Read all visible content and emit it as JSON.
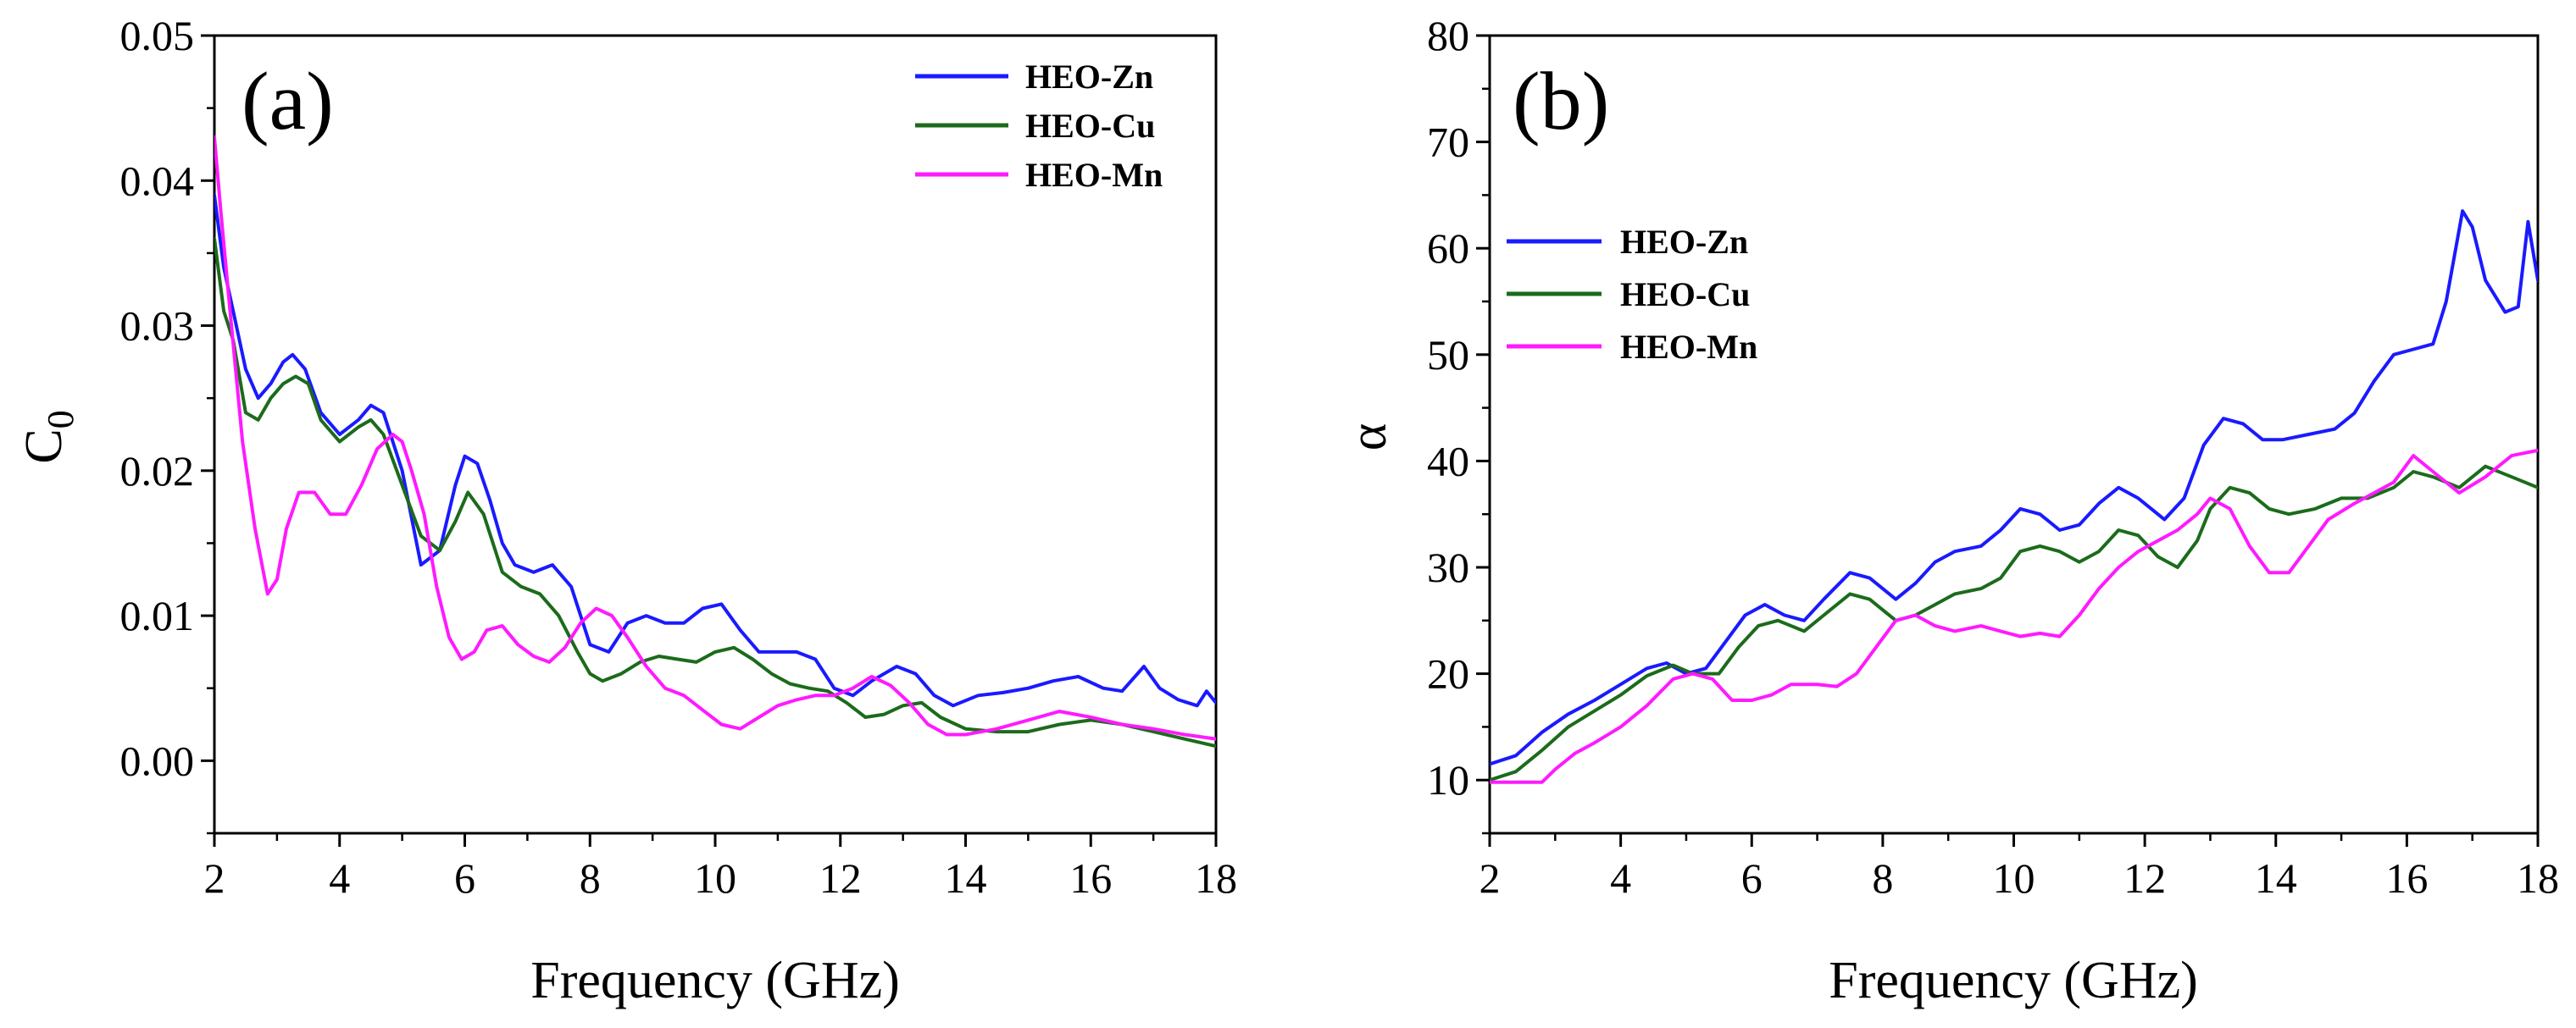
{
  "chart_data": [
    {
      "type": "line",
      "panel_label": "(a)",
      "title": "",
      "xlabel": "Frequency (GHz)",
      "ylabel_main": "C",
      "ylabel_sub": "0",
      "xlim": [
        2,
        18
      ],
      "ylim": [
        -0.005,
        0.05
      ],
      "x_ticks": [
        2,
        4,
        6,
        8,
        10,
        12,
        14,
        16,
        18
      ],
      "y_ticks": [
        0.0,
        0.01,
        0.02,
        0.03,
        0.04,
        0.05
      ],
      "y_tick_labels": [
        "0.00",
        "0.01",
        "0.02",
        "0.03",
        "0.04",
        "0.05"
      ],
      "legend_position": "top-right",
      "series": [
        {
          "name": "HEO-Zn",
          "color": "#1a1aff",
          "x": [
            2.0,
            2.15,
            2.3,
            2.5,
            2.7,
            2.9,
            3.1,
            3.25,
            3.45,
            3.7,
            4.0,
            4.3,
            4.5,
            4.7,
            5.0,
            5.3,
            5.6,
            5.85,
            6.0,
            6.2,
            6.4,
            6.6,
            6.8,
            7.1,
            7.4,
            7.7,
            8.0,
            8.3,
            8.6,
            8.9,
            9.2,
            9.5,
            9.8,
            10.1,
            10.4,
            10.7,
            11.0,
            11.3,
            11.6,
            11.9,
            12.2,
            12.5,
            12.9,
            13.2,
            13.5,
            13.8,
            14.2,
            14.6,
            15.0,
            15.4,
            15.8,
            16.2,
            16.5,
            16.85,
            17.1,
            17.4,
            17.7,
            17.85,
            18.0
          ],
          "values": [
            0.039,
            0.034,
            0.031,
            0.027,
            0.025,
            0.026,
            0.0275,
            0.028,
            0.027,
            0.024,
            0.0225,
            0.0235,
            0.0245,
            0.024,
            0.02,
            0.0135,
            0.0145,
            0.019,
            0.021,
            0.0205,
            0.018,
            0.015,
            0.0135,
            0.013,
            0.0135,
            0.012,
            0.008,
            0.0075,
            0.0095,
            0.01,
            0.0095,
            0.0095,
            0.0105,
            0.0108,
            0.009,
            0.0075,
            0.0075,
            0.0075,
            0.007,
            0.005,
            0.0045,
            0.0055,
            0.0065,
            0.006,
            0.0045,
            0.0038,
            0.0045,
            0.0047,
            0.005,
            0.0055,
            0.0058,
            0.005,
            0.0048,
            0.0065,
            0.005,
            0.0042,
            0.0038,
            0.0048,
            0.004
          ]
        },
        {
          "name": "HEO-Cu",
          "color": "#1b6b1b",
          "x": [
            2.0,
            2.15,
            2.3,
            2.5,
            2.7,
            2.9,
            3.1,
            3.3,
            3.5,
            3.7,
            4.0,
            4.3,
            4.5,
            4.7,
            5.0,
            5.3,
            5.6,
            5.85,
            6.05,
            6.3,
            6.6,
            6.9,
            7.2,
            7.5,
            7.8,
            8.0,
            8.2,
            8.5,
            8.8,
            9.1,
            9.4,
            9.7,
            10.0,
            10.3,
            10.6,
            10.9,
            11.2,
            11.5,
            11.8,
            12.1,
            12.4,
            12.7,
            13.0,
            13.3,
            13.6,
            14.0,
            14.5,
            15.0,
            15.5,
            16.0,
            16.5,
            17.0,
            17.5,
            18.0
          ],
          "values": [
            0.036,
            0.031,
            0.029,
            0.024,
            0.0235,
            0.025,
            0.026,
            0.0265,
            0.026,
            0.0235,
            0.022,
            0.023,
            0.0235,
            0.0225,
            0.019,
            0.0155,
            0.0145,
            0.0165,
            0.0185,
            0.017,
            0.013,
            0.012,
            0.0115,
            0.01,
            0.0075,
            0.006,
            0.0055,
            0.006,
            0.0068,
            0.0072,
            0.007,
            0.0068,
            0.0075,
            0.0078,
            0.007,
            0.006,
            0.0053,
            0.005,
            0.0048,
            0.004,
            0.003,
            0.0032,
            0.0038,
            0.004,
            0.003,
            0.0022,
            0.002,
            0.002,
            0.0025,
            0.0028,
            0.0025,
            0.002,
            0.0015,
            0.001
          ]
        },
        {
          "name": "HEO-Mn",
          "color": "#ff1aff",
          "x": [
            2.0,
            2.1,
            2.25,
            2.45,
            2.65,
            2.85,
            3.0,
            3.15,
            3.35,
            3.6,
            3.85,
            4.1,
            4.35,
            4.6,
            4.85,
            5.0,
            5.15,
            5.35,
            5.55,
            5.75,
            5.95,
            6.15,
            6.35,
            6.6,
            6.85,
            7.1,
            7.35,
            7.6,
            7.85,
            8.1,
            8.35,
            8.6,
            8.9,
            9.2,
            9.5,
            9.8,
            10.1,
            10.4,
            10.7,
            11.0,
            11.3,
            11.6,
            11.9,
            12.2,
            12.5,
            12.8,
            13.1,
            13.4,
            13.7,
            14.0,
            14.5,
            15.0,
            15.5,
            16.0,
            16.5,
            17.0,
            17.5,
            18.0
          ],
          "values": [
            0.043,
            0.038,
            0.031,
            0.022,
            0.016,
            0.0115,
            0.0125,
            0.016,
            0.0185,
            0.0185,
            0.017,
            0.017,
            0.019,
            0.0215,
            0.0225,
            0.022,
            0.02,
            0.017,
            0.012,
            0.0085,
            0.007,
            0.0075,
            0.009,
            0.0093,
            0.008,
            0.0072,
            0.0068,
            0.0078,
            0.0095,
            0.0105,
            0.01,
            0.0085,
            0.0065,
            0.005,
            0.0045,
            0.0035,
            0.0025,
            0.0022,
            0.003,
            0.0038,
            0.0042,
            0.0045,
            0.0045,
            0.005,
            0.0058,
            0.0052,
            0.004,
            0.0025,
            0.0018,
            0.0018,
            0.0022,
            0.0028,
            0.0034,
            0.003,
            0.0025,
            0.0022,
            0.0018,
            0.0015
          ]
        }
      ]
    },
    {
      "type": "line",
      "panel_label": "(b)",
      "title": "",
      "xlabel": "Frequency (GHz)",
      "ylabel_main": "α",
      "ylabel_sub": "",
      "xlim": [
        2,
        18
      ],
      "ylim": [
        5,
        80
      ],
      "x_ticks": [
        2,
        4,
        6,
        8,
        10,
        12,
        14,
        16,
        18
      ],
      "y_ticks": [
        10,
        20,
        30,
        40,
        50,
        60,
        70,
        80
      ],
      "y_tick_labels": [
        "10",
        "20",
        "30",
        "40",
        "50",
        "60",
        "70",
        "80"
      ],
      "legend_position": "top-left",
      "series": [
        {
          "name": "HEO-Zn",
          "color": "#1a1aff",
          "x": [
            2.0,
            2.4,
            2.8,
            3.2,
            3.6,
            4.0,
            4.4,
            4.7,
            5.0,
            5.3,
            5.6,
            5.9,
            6.2,
            6.5,
            6.8,
            7.1,
            7.5,
            7.8,
            8.2,
            8.5,
            8.8,
            9.1,
            9.5,
            9.8,
            10.1,
            10.4,
            10.7,
            11.0,
            11.3,
            11.6,
            11.9,
            12.3,
            12.6,
            12.9,
            13.2,
            13.5,
            13.8,
            14.1,
            14.5,
            14.9,
            15.2,
            15.5,
            15.8,
            16.1,
            16.4,
            16.6,
            16.85,
            17.0,
            17.2,
            17.5,
            17.7,
            17.85,
            18.0
          ],
          "values": [
            11.5,
            12.3,
            14.5,
            16.2,
            17.5,
            19.0,
            20.5,
            21.0,
            20.0,
            20.5,
            23.0,
            25.5,
            26.5,
            25.5,
            25.0,
            27.0,
            29.5,
            29.0,
            27.0,
            28.5,
            30.5,
            31.5,
            32.0,
            33.5,
            35.5,
            35.0,
            33.5,
            34.0,
            36.0,
            37.5,
            36.5,
            34.5,
            36.5,
            41.5,
            44.0,
            43.5,
            42.0,
            42.0,
            42.5,
            43.0,
            44.5,
            47.5,
            50.0,
            50.5,
            51.0,
            55.0,
            63.5,
            62.0,
            57.0,
            54.0,
            54.5,
            62.5,
            57.0
          ]
        },
        {
          "name": "HEO-Cu",
          "color": "#1b6b1b",
          "x": [
            2.0,
            2.4,
            2.8,
            3.2,
            3.6,
            4.0,
            4.4,
            4.8,
            5.1,
            5.5,
            5.8,
            6.1,
            6.4,
            6.8,
            7.1,
            7.5,
            7.8,
            8.2,
            8.5,
            8.8,
            9.1,
            9.5,
            9.8,
            10.1,
            10.4,
            10.7,
            11.0,
            11.3,
            11.6,
            11.9,
            12.2,
            12.5,
            12.8,
            13.0,
            13.3,
            13.6,
            13.9,
            14.2,
            14.6,
            15.0,
            15.4,
            15.8,
            16.1,
            16.4,
            16.8,
            17.2,
            17.6,
            18.0
          ],
          "values": [
            10.0,
            10.8,
            12.8,
            15.0,
            16.5,
            18.0,
            19.8,
            20.8,
            20.0,
            20.0,
            22.5,
            24.5,
            25.0,
            24.0,
            25.5,
            27.5,
            27.0,
            25.0,
            25.5,
            26.5,
            27.5,
            28.0,
            29.0,
            31.5,
            32.0,
            31.5,
            30.5,
            31.5,
            33.5,
            33.0,
            31.0,
            30.0,
            32.5,
            35.5,
            37.5,
            37.0,
            35.5,
            35.0,
            35.5,
            36.5,
            36.5,
            37.5,
            39.0,
            38.5,
            37.5,
            39.5,
            38.5,
            37.5
          ]
        },
        {
          "name": "HEO-Mn",
          "color": "#ff1aff",
          "x": [
            2.0,
            2.4,
            2.8,
            3.0,
            3.3,
            3.6,
            4.0,
            4.4,
            4.8,
            5.1,
            5.4,
            5.7,
            6.0,
            6.3,
            6.6,
            7.0,
            7.3,
            7.6,
            7.9,
            8.2,
            8.5,
            8.8,
            9.1,
            9.5,
            9.8,
            10.1,
            10.4,
            10.7,
            11.0,
            11.3,
            11.6,
            11.9,
            12.2,
            12.5,
            12.8,
            13.0,
            13.3,
            13.6,
            13.9,
            14.2,
            14.5,
            14.8,
            15.2,
            15.5,
            15.8,
            16.1,
            16.4,
            16.8,
            17.2,
            17.6,
            18.0
          ],
          "values": [
            9.8,
            9.8,
            9.8,
            11.0,
            12.5,
            13.5,
            15.0,
            17.0,
            19.5,
            20.0,
            19.5,
            17.5,
            17.5,
            18.0,
            19.0,
            19.0,
            18.8,
            20.0,
            22.5,
            25.0,
            25.5,
            24.5,
            24.0,
            24.5,
            24.0,
            23.5,
            23.8,
            23.5,
            25.5,
            28.0,
            30.0,
            31.5,
            32.5,
            33.5,
            35.0,
            36.5,
            35.5,
            32.0,
            29.5,
            29.5,
            32.0,
            34.5,
            36.0,
            37.0,
            38.0,
            40.5,
            39.0,
            37.0,
            38.5,
            40.5,
            41.0
          ]
        }
      ]
    }
  ]
}
